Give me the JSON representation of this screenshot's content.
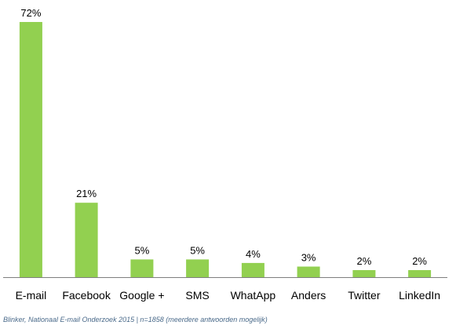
{
  "chart_data": {
    "type": "bar",
    "categories": [
      "E-mail",
      "Facebook",
      "Google +",
      "SMS",
      "WhatApp",
      "Anders",
      "Twitter",
      "LinkedIn"
    ],
    "values": [
      72,
      21,
      5,
      5,
      4,
      3,
      2,
      2
    ],
    "value_labels": [
      "72%",
      "21%",
      "5%",
      "5%",
      "4%",
      "3%",
      "2%",
      "2%"
    ],
    "ylim": [
      0,
      72
    ],
    "grid": false,
    "legend": "none",
    "bar_color": "#92d050",
    "axis_color": "#7f7f7f"
  },
  "source": "Blinker, Nationaal E-mail Onderzoek 2015 | n=1858  (meerdere antwoorden mogelijk)"
}
